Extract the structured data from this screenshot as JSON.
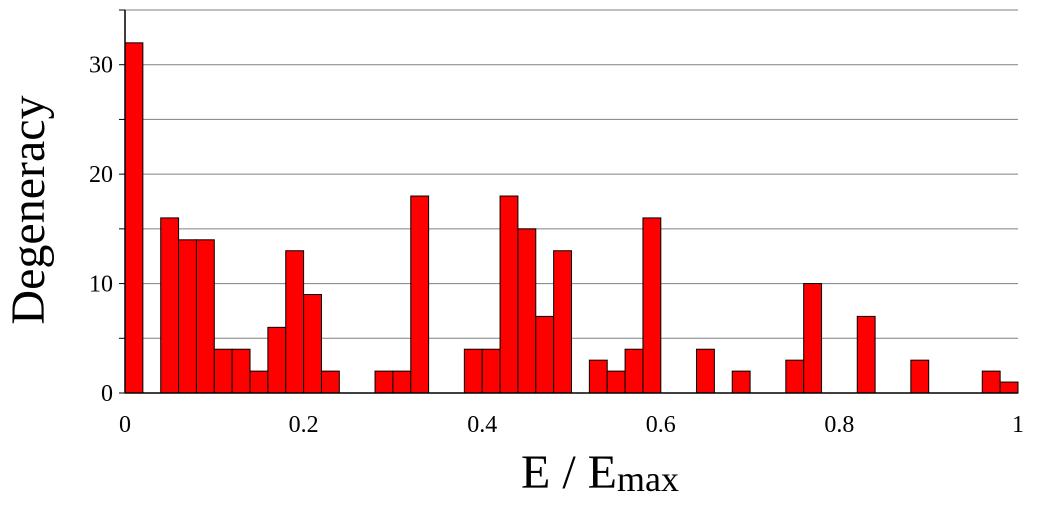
{
  "chart_data": {
    "type": "bar",
    "ylabel": "Degeneracy",
    "xlabel": {
      "main": "E / E",
      "subscript": "max"
    },
    "xlim": [
      0,
      1
    ],
    "ylim": [
      0,
      35
    ],
    "x_ticks": [
      "0",
      "0.2",
      "0.4",
      "0.6",
      "0.8",
      "1"
    ],
    "y_ticks": [
      "0",
      "10",
      "20",
      "30"
    ],
    "grid": "horizontal",
    "bar_color": "#ff0000",
    "bin_width": 0.02,
    "bins": [
      {
        "x": 0.0,
        "value": 32
      },
      {
        "x": 0.04,
        "value": 16
      },
      {
        "x": 0.06,
        "value": 14
      },
      {
        "x": 0.08,
        "value": 14
      },
      {
        "x": 0.1,
        "value": 4
      },
      {
        "x": 0.12,
        "value": 4
      },
      {
        "x": 0.14,
        "value": 2
      },
      {
        "x": 0.16,
        "value": 6
      },
      {
        "x": 0.18,
        "value": 13
      },
      {
        "x": 0.2,
        "value": 9
      },
      {
        "x": 0.22,
        "value": 2
      },
      {
        "x": 0.28,
        "value": 2
      },
      {
        "x": 0.3,
        "value": 2
      },
      {
        "x": 0.32,
        "value": 18
      },
      {
        "x": 0.38,
        "value": 4
      },
      {
        "x": 0.4,
        "value": 4
      },
      {
        "x": 0.42,
        "value": 18
      },
      {
        "x": 0.44,
        "value": 15
      },
      {
        "x": 0.46,
        "value": 7
      },
      {
        "x": 0.48,
        "value": 13
      },
      {
        "x": 0.52,
        "value": 3
      },
      {
        "x": 0.54,
        "value": 2
      },
      {
        "x": 0.56,
        "value": 4
      },
      {
        "x": 0.58,
        "value": 16
      },
      {
        "x": 0.64,
        "value": 4
      },
      {
        "x": 0.68,
        "value": 2
      },
      {
        "x": 0.74,
        "value": 3
      },
      {
        "x": 0.76,
        "value": 10
      },
      {
        "x": 0.82,
        "value": 7
      },
      {
        "x": 0.88,
        "value": 3
      },
      {
        "x": 0.96,
        "value": 2
      },
      {
        "x": 0.98,
        "value": 1
      }
    ]
  }
}
